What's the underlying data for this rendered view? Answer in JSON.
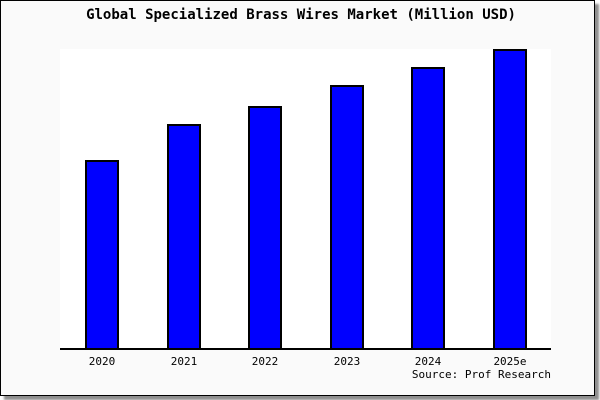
{
  "title": "Global Specialized Brass Wires Market (Million USD)",
  "source": "Source: Prof Research",
  "colors": {
    "bar_fill": "#0000ff",
    "bar_border": "#000000",
    "axis": "#000000",
    "figure_bg": "#fafafa",
    "plot_bg": "#ffffff"
  },
  "chart_data": {
    "type": "bar",
    "title": "Global Specialized Brass Wires Market (Million USD)",
    "categories": [
      "2020",
      "2021",
      "2022",
      "2023",
      "2024",
      "2025e"
    ],
    "values": [
      63,
      75,
      81,
      88,
      94,
      100
    ],
    "value_basis": "estimated from bar heights; no y-axis shown; indexed so 2025e = 100",
    "xlabel": "",
    "ylabel": "",
    "ylim": [
      0,
      102
    ],
    "grid": false,
    "legend": false,
    "source": "Source: Prof Research"
  }
}
